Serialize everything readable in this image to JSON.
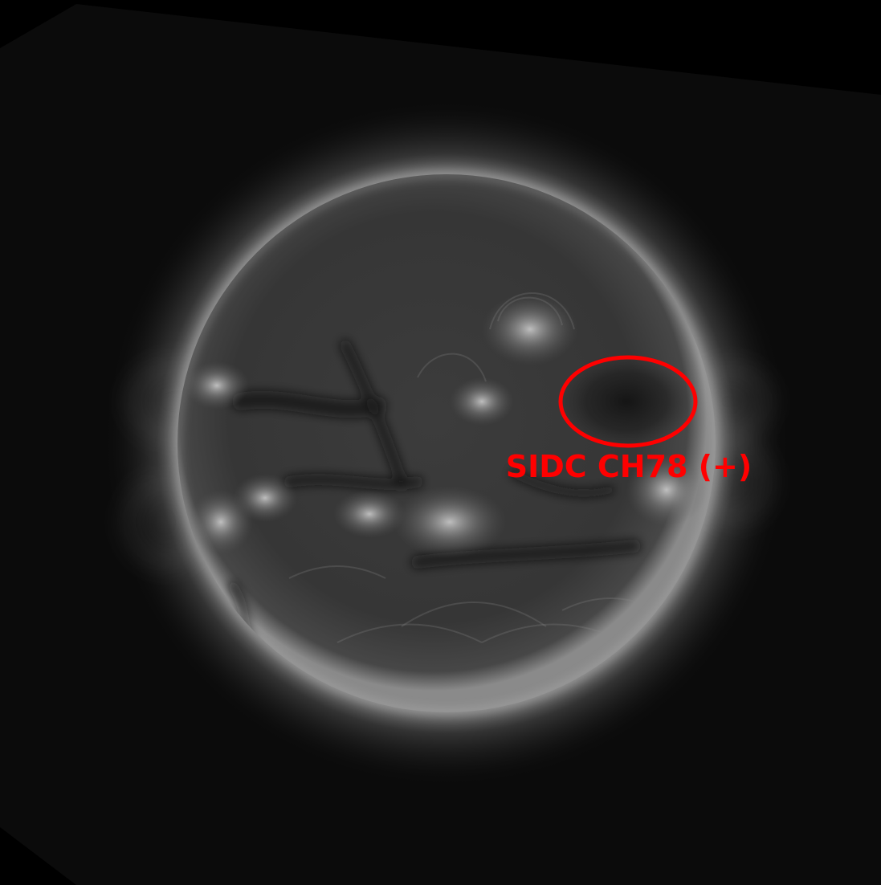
{
  "image": {
    "subject": "solar-disk",
    "colors": {
      "background": "#000000",
      "rotated_field": "#0b0b0b",
      "disk_base": "#3a3a3a",
      "corona": "#9a9a9a",
      "annotation": "#ff0000"
    }
  },
  "annotation": {
    "label": "SIDC CH78 (+)",
    "shape": "ellipse",
    "color": "#ff0000"
  }
}
